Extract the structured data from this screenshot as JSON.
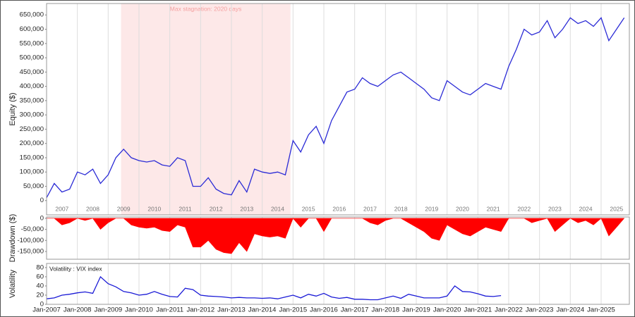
{
  "chart_data": [
    {
      "type": "line",
      "x": [
        "2007-01",
        "2007-04",
        "2007-07",
        "2007-10",
        "2008-01",
        "2008-04",
        "2008-07",
        "2008-10",
        "2009-01",
        "2009-04",
        "2009-07",
        "2009-10",
        "2010-01",
        "2010-04",
        "2010-07",
        "2010-10",
        "2011-01",
        "2011-04",
        "2011-07",
        "2011-10",
        "2012-01",
        "2012-04",
        "2012-07",
        "2012-10",
        "2013-01",
        "2013-04",
        "2013-07",
        "2013-10",
        "2014-01",
        "2014-04",
        "2014-07",
        "2014-10",
        "2015-01",
        "2015-04",
        "2015-07",
        "2015-10",
        "2016-01",
        "2016-04",
        "2016-07",
        "2016-10",
        "2017-01",
        "2017-04",
        "2017-07",
        "2017-10",
        "2018-01",
        "2018-04",
        "2018-07",
        "2018-10",
        "2019-01",
        "2019-04",
        "2019-07",
        "2019-10",
        "2020-01",
        "2020-04",
        "2020-07",
        "2020-10",
        "2021-01",
        "2021-04",
        "2021-07",
        "2021-10",
        "2022-01",
        "2022-04",
        "2022-07",
        "2022-10",
        "2023-01",
        "2023-04",
        "2023-07",
        "2023-10",
        "2024-01",
        "2024-04",
        "2024-07",
        "2024-10",
        "2025-01",
        "2025-04",
        "2025-07",
        "2025-10"
      ],
      "series": [
        {
          "color": "#2b2bd6",
          "values": [
            10000,
            60000,
            30000,
            40000,
            100000,
            90000,
            110000,
            60000,
            90000,
            150000,
            180000,
            150000,
            140000,
            135000,
            140000,
            125000,
            120000,
            150000,
            140000,
            50000,
            50000,
            80000,
            40000,
            25000,
            20000,
            70000,
            30000,
            110000,
            100000,
            95000,
            100000,
            90000,
            210000,
            170000,
            230000,
            260000,
            200000,
            280000,
            330000,
            380000,
            390000,
            430000,
            410000,
            400000,
            420000,
            440000,
            450000,
            430000,
            410000,
            390000,
            360000,
            350000,
            420000,
            400000,
            380000,
            370000,
            390000,
            410000,
            400000,
            390000,
            470000,
            530000,
            600000,
            580000,
            590000,
            630000,
            570000,
            600000,
            640000,
            620000,
            630000,
            610000,
            640000,
            560000,
            600000,
            640000
          ]
        }
      ],
      "y_label": "Equity ($)",
      "annotation": "Max stagnation: 2020 days",
      "highlight": [
        "2009-06",
        "2014-12"
      ],
      "highlight_color": "#fde8e8",
      "xlim": [
        "2007-01",
        "2025-12"
      ],
      "xticks": [
        {
          "value": "2007-07",
          "label": "2007"
        },
        {
          "value": "2008-07",
          "label": "2008"
        },
        {
          "value": "2009-07",
          "label": "2009"
        },
        {
          "value": "2010-07",
          "label": "2010"
        },
        {
          "value": "2011-07",
          "label": "2011"
        },
        {
          "value": "2012-07",
          "label": "2012"
        },
        {
          "value": "2013-07",
          "label": "2013"
        },
        {
          "value": "2014-07",
          "label": "2014"
        },
        {
          "value": "2015-07",
          "label": "2015"
        },
        {
          "value": "2016-07",
          "label": "2016"
        },
        {
          "value": "2017-07",
          "label": "2017"
        },
        {
          "value": "2018-07",
          "label": "2018"
        },
        {
          "value": "2019-07",
          "label": "2019"
        },
        {
          "value": "2020-07",
          "label": "2020"
        },
        {
          "value": "2021-07",
          "label": "2021"
        },
        {
          "value": "2022-07",
          "label": "2022"
        },
        {
          "value": "2023-07",
          "label": "2023"
        },
        {
          "value": "2024-07",
          "label": "2024"
        },
        {
          "value": "2025-07",
          "label": "2025"
        }
      ],
      "ylim": [
        -50000,
        690000
      ],
      "yticks": [
        0,
        {
          "value": 50000,
          "label": "50,000"
        },
        {
          "value": 100000,
          "label": "100,000"
        },
        {
          "value": 150000,
          "label": "150,000"
        },
        {
          "value": 200000,
          "label": "200,000"
        },
        {
          "value": 250000,
          "label": "250,000"
        },
        {
          "value": 300000,
          "label": "300,000"
        },
        {
          "value": 350000,
          "label": "350,000"
        },
        {
          "value": 400000,
          "label": "400,000"
        },
        {
          "value": 450000,
          "label": "450,000"
        },
        {
          "value": 500000,
          "label": "500,000"
        },
        {
          "value": 550000,
          "label": "550,000"
        },
        {
          "value": 600000,
          "label": "600,000"
        },
        {
          "value": 650000,
          "label": "650,000"
        }
      ],
      "grid": true
    },
    {
      "type": "area",
      "x": [
        "2007-01",
        "2007-04",
        "2007-07",
        "2007-10",
        "2008-01",
        "2008-04",
        "2008-07",
        "2008-10",
        "2009-01",
        "2009-04",
        "2009-07",
        "2009-10",
        "2010-01",
        "2010-04",
        "2010-07",
        "2010-10",
        "2011-01",
        "2011-04",
        "2011-07",
        "2011-10",
        "2012-01",
        "2012-04",
        "2012-07",
        "2012-10",
        "2013-01",
        "2013-04",
        "2013-07",
        "2013-10",
        "2014-01",
        "2014-04",
        "2014-07",
        "2014-10",
        "2015-01",
        "2015-04",
        "2015-07",
        "2015-10",
        "2016-01",
        "2016-04",
        "2016-07",
        "2016-10",
        "2017-01",
        "2017-04",
        "2017-07",
        "2017-10",
        "2018-01",
        "2018-04",
        "2018-07",
        "2018-10",
        "2019-01",
        "2019-04",
        "2019-07",
        "2019-10",
        "2020-01",
        "2020-04",
        "2020-07",
        "2020-10",
        "2021-01",
        "2021-04",
        "2021-07",
        "2021-10",
        "2022-01",
        "2022-04",
        "2022-07",
        "2022-10",
        "2023-01",
        "2023-04",
        "2023-07",
        "2023-10",
        "2024-01",
        "2024-04",
        "2024-07",
        "2024-10",
        "2025-01",
        "2025-04",
        "2025-07",
        "2025-10"
      ],
      "series": [
        {
          "color": "#ff0000",
          "values": [
            0,
            0,
            -30000,
            -20000,
            0,
            -10000,
            0,
            -50000,
            -20000,
            0,
            0,
            -30000,
            -40000,
            -45000,
            -40000,
            -55000,
            -60000,
            -30000,
            -40000,
            -130000,
            -130000,
            -100000,
            -140000,
            -155000,
            -160000,
            -110000,
            -150000,
            -70000,
            -80000,
            -85000,
            -80000,
            -90000,
            0,
            -40000,
            0,
            0,
            -60000,
            0,
            0,
            0,
            0,
            0,
            -20000,
            -30000,
            -10000,
            0,
            0,
            -20000,
            -40000,
            -60000,
            -90000,
            -100000,
            -30000,
            -50000,
            -70000,
            -80000,
            -60000,
            -40000,
            -50000,
            -60000,
            0,
            0,
            0,
            -20000,
            -10000,
            0,
            -60000,
            -30000,
            0,
            -20000,
            -10000,
            -30000,
            0,
            -80000,
            -40000,
            0
          ]
        }
      ],
      "y_label": "Drawdown ($)",
      "xlim": [
        "2007-01",
        "2025-12"
      ],
      "ylim": [
        -185000,
        6000
      ],
      "yticks": [
        0,
        {
          "value": -50000,
          "label": "-50,000"
        },
        {
          "value": -100000,
          "label": "-100,000"
        },
        {
          "value": -150000,
          "label": "-150,000"
        }
      ],
      "grid": true
    },
    {
      "type": "line",
      "x": [
        "2007-01",
        "2007-04",
        "2007-07",
        "2007-10",
        "2008-01",
        "2008-04",
        "2008-07",
        "2008-10",
        "2009-01",
        "2009-04",
        "2009-07",
        "2009-10",
        "2010-01",
        "2010-04",
        "2010-07",
        "2010-10",
        "2011-01",
        "2011-04",
        "2011-07",
        "2011-10",
        "2012-01",
        "2012-04",
        "2012-07",
        "2012-10",
        "2013-01",
        "2013-04",
        "2013-07",
        "2013-10",
        "2014-01",
        "2014-04",
        "2014-07",
        "2014-10",
        "2015-01",
        "2015-04",
        "2015-07",
        "2015-10",
        "2016-01",
        "2016-04",
        "2016-07",
        "2016-10",
        "2017-01",
        "2017-04",
        "2017-07",
        "2017-10",
        "2018-01",
        "2018-04",
        "2018-07",
        "2018-10",
        "2019-01",
        "2019-04",
        "2019-07",
        "2019-10",
        "2020-01",
        "2020-04",
        "2020-07",
        "2020-10",
        "2021-01",
        "2021-04",
        "2021-07",
        "2021-10"
      ],
      "series": [
        {
          "name": "Volatility : VIX index",
          "color": "#1a1ad6",
          "values": [
            12,
            14,
            20,
            22,
            25,
            27,
            24,
            60,
            45,
            38,
            28,
            25,
            20,
            22,
            28,
            22,
            17,
            16,
            35,
            32,
            20,
            18,
            17,
            16,
            14,
            15,
            14,
            14,
            13,
            14,
            12,
            16,
            20,
            14,
            22,
            18,
            24,
            16,
            13,
            15,
            11,
            11,
            10,
            10,
            14,
            18,
            13,
            22,
            18,
            14,
            14,
            14,
            18,
            40,
            28,
            27,
            23,
            18,
            17,
            19
          ]
        }
      ],
      "y_label": "Volatility",
      "xlim": [
        "2007-01",
        "2025-12"
      ],
      "xticks": [
        {
          "value": "2007-01",
          "label": "Jan-2007"
        },
        {
          "value": "2008-01",
          "label": "Jan-2008"
        },
        {
          "value": "2009-01",
          "label": "Jan-2009"
        },
        {
          "value": "2010-01",
          "label": "Jan-2010"
        },
        {
          "value": "2011-01",
          "label": "Jan-2011"
        },
        {
          "value": "2012-01",
          "label": "Jan-2012"
        },
        {
          "value": "2013-01",
          "label": "Jan-2013"
        },
        {
          "value": "2014-01",
          "label": "Jan-2014"
        },
        {
          "value": "2015-01",
          "label": "Jan-2015"
        },
        {
          "value": "2016-01",
          "label": "Jan-2016"
        },
        {
          "value": "2017-01",
          "label": "Jan-2017"
        },
        {
          "value": "2018-01",
          "label": "Jan-2018"
        },
        {
          "value": "2019-01",
          "label": "Jan-2019"
        },
        {
          "value": "2020-01",
          "label": "Jan-2020"
        },
        {
          "value": "2021-01",
          "label": "Jan-2021"
        },
        {
          "value": "2022-01",
          "label": "Jan-2022"
        },
        {
          "value": "2023-01",
          "label": "Jan-2023"
        },
        {
          "value": "2024-01",
          "label": "Jan-2024"
        },
        {
          "value": "2025-01",
          "label": "Jan-2025"
        }
      ],
      "ylim": [
        0,
        89
      ],
      "yticks": [
        0,
        20,
        40,
        60,
        80
      ],
      "grid": true
    }
  ]
}
